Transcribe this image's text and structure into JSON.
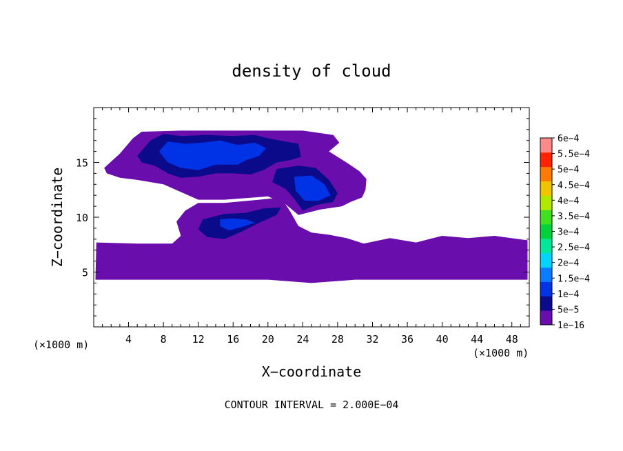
{
  "chart_data": {
    "type": "heatmap",
    "title": "density of cloud",
    "xlabel": "X−coordinate",
    "ylabel": "Z−coordinate",
    "x_unit_left": "(×1000 m)",
    "x_unit_right": "(×1000 m)",
    "footer": "CONTOUR INTERVAL = 2.000E−04",
    "xlim": [
      0,
      50
    ],
    "ylim": [
      0,
      20
    ],
    "x_ticks": [
      4,
      8,
      12,
      16,
      20,
      24,
      28,
      32,
      36,
      40,
      44,
      48
    ],
    "x_tick_labels": [
      "4",
      "8",
      "12",
      "16",
      "20",
      "24",
      "28",
      "32",
      "36",
      "40",
      "44",
      "48"
    ],
    "y_ticks": [
      5,
      10,
      15
    ],
    "y_tick_labels": [
      "5",
      "10",
      "15"
    ],
    "colorbar": {
      "labels": [
        "1e−16",
        "5e−5",
        "1e−4",
        "1.5e−4",
        "2e−4",
        "2.5e−4",
        "3e−4",
        "3.5e−4",
        "4e−4",
        "4.5e−4",
        "5e−4",
        "5.5e−4",
        "6e−4"
      ],
      "colors": [
        "#6a0dad",
        "#0a0a8a",
        "#0033e6",
        "#0a7cff",
        "#00d4ff",
        "#00e89a",
        "#00d23c",
        "#40e020",
        "#b0e800",
        "#f0c400",
        "#ff7a00",
        "#ff2200",
        "#ff8a8a"
      ]
    },
    "regions": [
      {
        "level": 1,
        "points": [
          [
            0.2,
            4.3
          ],
          [
            0.3,
            7.7
          ],
          [
            5.0,
            7.6
          ],
          [
            9.0,
            7.6
          ],
          [
            10.0,
            8.3
          ],
          [
            9.5,
            9.6
          ],
          [
            10.5,
            10.6
          ],
          [
            12.0,
            11.3
          ],
          [
            15.0,
            11.3
          ],
          [
            19.0,
            11.6
          ],
          [
            21.5,
            11.8
          ],
          [
            22.5,
            10.6
          ],
          [
            23.5,
            9.2
          ],
          [
            25.0,
            8.6
          ],
          [
            27.0,
            8.4
          ],
          [
            29.0,
            8.1
          ],
          [
            31.0,
            7.6
          ],
          [
            34.0,
            8.1
          ],
          [
            37.0,
            7.7
          ],
          [
            40.0,
            8.3
          ],
          [
            43.0,
            8.1
          ],
          [
            46.0,
            8.3
          ],
          [
            49.8,
            7.9
          ],
          [
            49.8,
            4.3
          ],
          [
            30.0,
            4.3
          ],
          [
            25.0,
            4.0
          ],
          [
            20.0,
            4.3
          ]
        ]
      },
      {
        "level": 1,
        "points": [
          [
            1.2,
            14.5
          ],
          [
            3.0,
            15.8
          ],
          [
            4.5,
            17.2
          ],
          [
            5.5,
            17.8
          ],
          [
            10.0,
            17.9
          ],
          [
            15.0,
            17.9
          ],
          [
            20.0,
            17.9
          ],
          [
            24.0,
            17.9
          ],
          [
            27.5,
            17.5
          ],
          [
            28.2,
            16.8
          ],
          [
            27.0,
            16.0
          ],
          [
            29.0,
            15.0
          ],
          [
            30.5,
            14.2
          ],
          [
            31.3,
            13.5
          ],
          [
            31.2,
            12.5
          ],
          [
            30.8,
            11.8
          ],
          [
            29.5,
            11.4
          ],
          [
            28.5,
            11.0
          ],
          [
            26.0,
            10.7
          ],
          [
            23.5,
            10.2
          ],
          [
            22.0,
            11.2
          ],
          [
            20.0,
            11.9
          ],
          [
            15.0,
            11.6
          ],
          [
            12.0,
            11.6
          ],
          [
            10.0,
            12.3
          ],
          [
            8.0,
            13.0
          ],
          [
            5.0,
            13.4
          ],
          [
            3.0,
            13.6
          ],
          [
            1.5,
            14.0
          ]
        ]
      },
      {
        "level": 2,
        "points": [
          [
            5.0,
            15.6
          ],
          [
            6.5,
            17.0
          ],
          [
            8.0,
            17.6
          ],
          [
            10.0,
            17.4
          ],
          [
            13.0,
            17.5
          ],
          [
            16.0,
            17.4
          ],
          [
            18.5,
            17.5
          ],
          [
            20.0,
            17.2
          ],
          [
            22.0,
            16.9
          ],
          [
            23.5,
            16.7
          ],
          [
            23.8,
            15.5
          ],
          [
            22.5,
            15.2
          ],
          [
            21.0,
            15.0
          ],
          [
            19.5,
            14.3
          ],
          [
            18.0,
            13.9
          ],
          [
            16.0,
            14.0
          ],
          [
            14.0,
            14.0
          ],
          [
            12.0,
            13.7
          ],
          [
            10.0,
            13.6
          ],
          [
            8.5,
            14.0
          ],
          [
            7.0,
            14.7
          ],
          [
            5.5,
            15.0
          ]
        ]
      },
      {
        "level": 2,
        "points": [
          [
            21.0,
            14.4
          ],
          [
            23.5,
            14.7
          ],
          [
            25.5,
            14.5
          ],
          [
            27.0,
            13.4
          ],
          [
            28.0,
            12.2
          ],
          [
            27.5,
            11.4
          ],
          [
            25.5,
            11.1
          ],
          [
            24.0,
            10.6
          ],
          [
            23.0,
            11.7
          ],
          [
            22.0,
            12.6
          ],
          [
            20.5,
            13.2
          ]
        ]
      },
      {
        "level": 2,
        "points": [
          [
            12.5,
            9.8
          ],
          [
            15.0,
            10.3
          ],
          [
            17.5,
            10.4
          ],
          [
            19.5,
            10.8
          ],
          [
            21.5,
            10.9
          ],
          [
            21.0,
            10.2
          ],
          [
            19.0,
            9.5
          ],
          [
            17.0,
            8.7
          ],
          [
            15.0,
            8.0
          ],
          [
            13.0,
            8.2
          ],
          [
            12.0,
            8.9
          ]
        ]
      },
      {
        "level": 3,
        "points": [
          [
            7.5,
            16.0
          ],
          [
            8.5,
            16.9
          ],
          [
            10.5,
            16.7
          ],
          [
            12.5,
            16.8
          ],
          [
            14.5,
            17.0
          ],
          [
            16.5,
            16.6
          ],
          [
            18.5,
            16.8
          ],
          [
            19.8,
            16.3
          ],
          [
            19.0,
            15.6
          ],
          [
            17.5,
            15.2
          ],
          [
            16.5,
            14.8
          ],
          [
            14.0,
            14.8
          ],
          [
            12.0,
            14.3
          ],
          [
            10.0,
            14.5
          ],
          [
            8.5,
            15.0
          ]
        ]
      },
      {
        "level": 3,
        "points": [
          [
            23.0,
            13.7
          ],
          [
            25.0,
            13.8
          ],
          [
            26.5,
            13.0
          ],
          [
            27.2,
            12.0
          ],
          [
            25.8,
            11.5
          ],
          [
            24.2,
            11.5
          ],
          [
            23.2,
            12.4
          ]
        ]
      },
      {
        "level": 3,
        "points": [
          [
            14.5,
            9.8
          ],
          [
            16.0,
            9.9
          ],
          [
            17.5,
            9.8
          ],
          [
            18.5,
            9.5
          ],
          [
            17.0,
            9.1
          ],
          [
            15.5,
            8.8
          ],
          [
            14.5,
            9.2
          ]
        ]
      },
      {
        "level": 1,
        "points": [
          [
            10.5,
            5.6
          ],
          [
            11.5,
            5.7
          ],
          [
            12.5,
            5.5
          ],
          [
            12.0,
            5.2
          ],
          [
            11.0,
            5.3
          ]
        ]
      }
    ]
  }
}
